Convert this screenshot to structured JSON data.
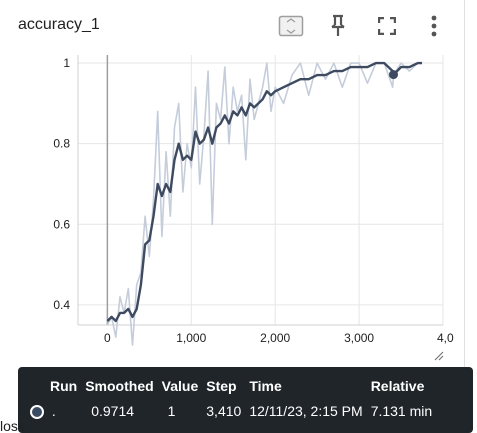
{
  "card": {
    "title": "accuracy_1"
  },
  "toolbar": {
    "icons": [
      "fit-domain-icon",
      "pin-icon",
      "fullscreen-icon",
      "more-vert-icon"
    ]
  },
  "chart_data": {
    "type": "line",
    "title": "accuracy_1",
    "xlabel": "",
    "ylabel": "",
    "xlim": [
      -350,
      4000
    ],
    "ylim": [
      0.35,
      1.02
    ],
    "x_ticks": [
      "0",
      "1,000",
      "2,000",
      "3,000",
      "4,0"
    ],
    "y_ticks": [
      "1",
      "0.8",
      "0.6",
      "0.4"
    ],
    "grid": true,
    "colors": {
      "raw": "#c5cddb",
      "smoothed": "#3d4a60"
    },
    "series": [
      {
        "x": [
          0,
          50,
          100,
          150,
          200,
          250,
          300,
          350,
          400,
          450,
          500,
          550,
          600,
          650,
          700,
          750,
          800,
          850,
          900,
          950,
          1000,
          1050,
          1100,
          1150,
          1200,
          1250,
          1300,
          1350,
          1400,
          1450,
          1500,
          1550,
          1600,
          1650,
          1700,
          1750,
          1800,
          1850,
          1900,
          1950,
          2000,
          2100,
          2200,
          2300,
          2400,
          2500,
          2600,
          2700,
          2800,
          2900,
          3000,
          3100,
          3200,
          3300,
          3400,
          3410,
          3500,
          3600,
          3700,
          3750
        ],
        "raw": [
          0.35,
          0.37,
          0.32,
          0.42,
          0.38,
          0.44,
          0.3,
          0.45,
          0.48,
          0.62,
          0.52,
          0.66,
          0.88,
          0.57,
          0.78,
          0.62,
          0.84,
          0.9,
          0.68,
          0.8,
          0.74,
          0.94,
          0.7,
          0.82,
          0.98,
          0.6,
          0.9,
          0.86,
          0.99,
          0.8,
          0.94,
          0.88,
          0.92,
          0.76,
          0.96,
          0.86,
          0.9,
          0.94,
          1.0,
          0.88,
          0.94,
          0.9,
          0.97,
          1.0,
          0.92,
          1.0,
          0.96,
          1.0,
          0.94,
          1.0,
          1.0,
          0.95,
          1.0,
          1.0,
          0.94,
          0.97,
          1.0,
          0.98,
          1.0,
          1.0
        ],
        "smoothed": [
          0.36,
          0.37,
          0.36,
          0.38,
          0.38,
          0.39,
          0.37,
          0.39,
          0.45,
          0.55,
          0.56,
          0.62,
          0.7,
          0.67,
          0.7,
          0.68,
          0.76,
          0.8,
          0.76,
          0.77,
          0.76,
          0.83,
          0.8,
          0.81,
          0.84,
          0.8,
          0.84,
          0.85,
          0.87,
          0.85,
          0.88,
          0.87,
          0.89,
          0.87,
          0.9,
          0.89,
          0.9,
          0.91,
          0.93,
          0.92,
          0.93,
          0.94,
          0.95,
          0.96,
          0.96,
          0.97,
          0.97,
          0.98,
          0.98,
          0.99,
          0.99,
          0.99,
          1.0,
          1.0,
          0.98,
          0.9714,
          0.99,
          0.99,
          1.0,
          1.0
        ]
      }
    ],
    "highlight_point": {
      "x": 3410,
      "y": 0.9714
    }
  },
  "tooltip": {
    "headers": {
      "run": "Run",
      "smoothed": "Smoothed",
      "value": "Value",
      "step": "Step",
      "time": "Time",
      "relative": "Relative"
    },
    "row": {
      "run": ".",
      "smoothed": "0.9714",
      "value": "1",
      "step": "3,410",
      "time": "12/11/23, 2:15 PM",
      "relative": "7.131 min"
    }
  },
  "peek": {
    "text": "loss"
  }
}
